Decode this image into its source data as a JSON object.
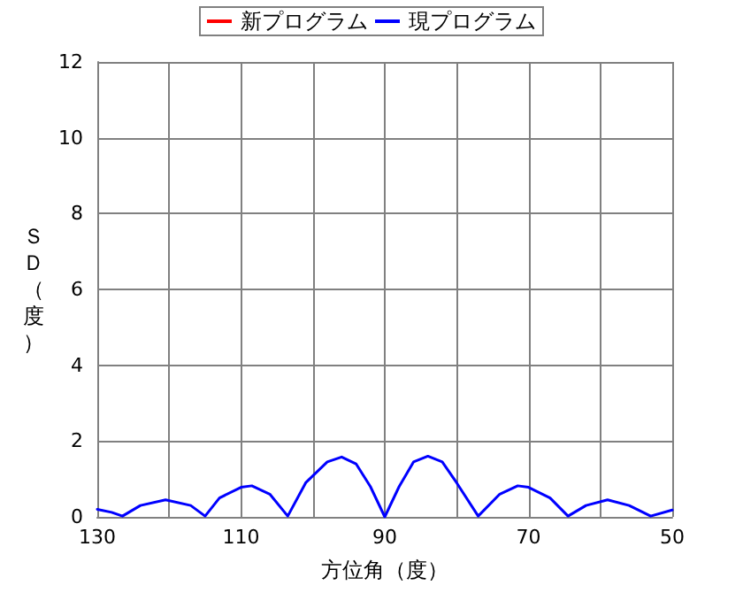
{
  "chart_data": {
    "type": "line",
    "xlabel": "方位角（度）",
    "ylabel": "ＳＤ（度）",
    "x": [
      130,
      128,
      126.5,
      124,
      120.5,
      117,
      115,
      113,
      110,
      108.5,
      106,
      103.5,
      101,
      98,
      96,
      94,
      92,
      90,
      88,
      86,
      84,
      82,
      80,
      77,
      74,
      71.5,
      70,
      67,
      64.5,
      62,
      59,
      56,
      53,
      50
    ],
    "series": [
      {
        "name": "新プログラム",
        "color": "#ff0000",
        "values": [
          null,
          null,
          null,
          null,
          null,
          null,
          null,
          null,
          null,
          null,
          null,
          null,
          null,
          null,
          null,
          null,
          null,
          null,
          null,
          null,
          null,
          null,
          null,
          null,
          null,
          null,
          null,
          null,
          null,
          null,
          null,
          null,
          null,
          null
        ]
      },
      {
        "name": "現プログラム",
        "color": "#0000ff",
        "values": [
          0.2,
          0.12,
          0.02,
          0.3,
          0.45,
          0.3,
          0.02,
          0.5,
          0.78,
          0.82,
          0.6,
          0.02,
          0.9,
          1.45,
          1.58,
          1.4,
          0.8,
          0,
          0.8,
          1.45,
          1.6,
          1.45,
          0.9,
          0.02,
          0.6,
          0.82,
          0.78,
          0.5,
          0.02,
          0.3,
          0.45,
          0.3,
          0.02,
          0.18
        ]
      }
    ],
    "xlim": [
      130,
      50
    ],
    "xticks": [
      130,
      {
        "value": 120,
        "label": null
      },
      110,
      {
        "value": 100,
        "label": null
      },
      90,
      {
        "value": 80,
        "label": null
      },
      70,
      {
        "value": 60,
        "label": null
      },
      50
    ],
    "ylim": [
      0,
      12
    ],
    "yticks": [
      0,
      2,
      4,
      6,
      8,
      10,
      12
    ],
    "grid": true,
    "legend": "top",
    "marker": "none",
    "line_style": "solid"
  }
}
